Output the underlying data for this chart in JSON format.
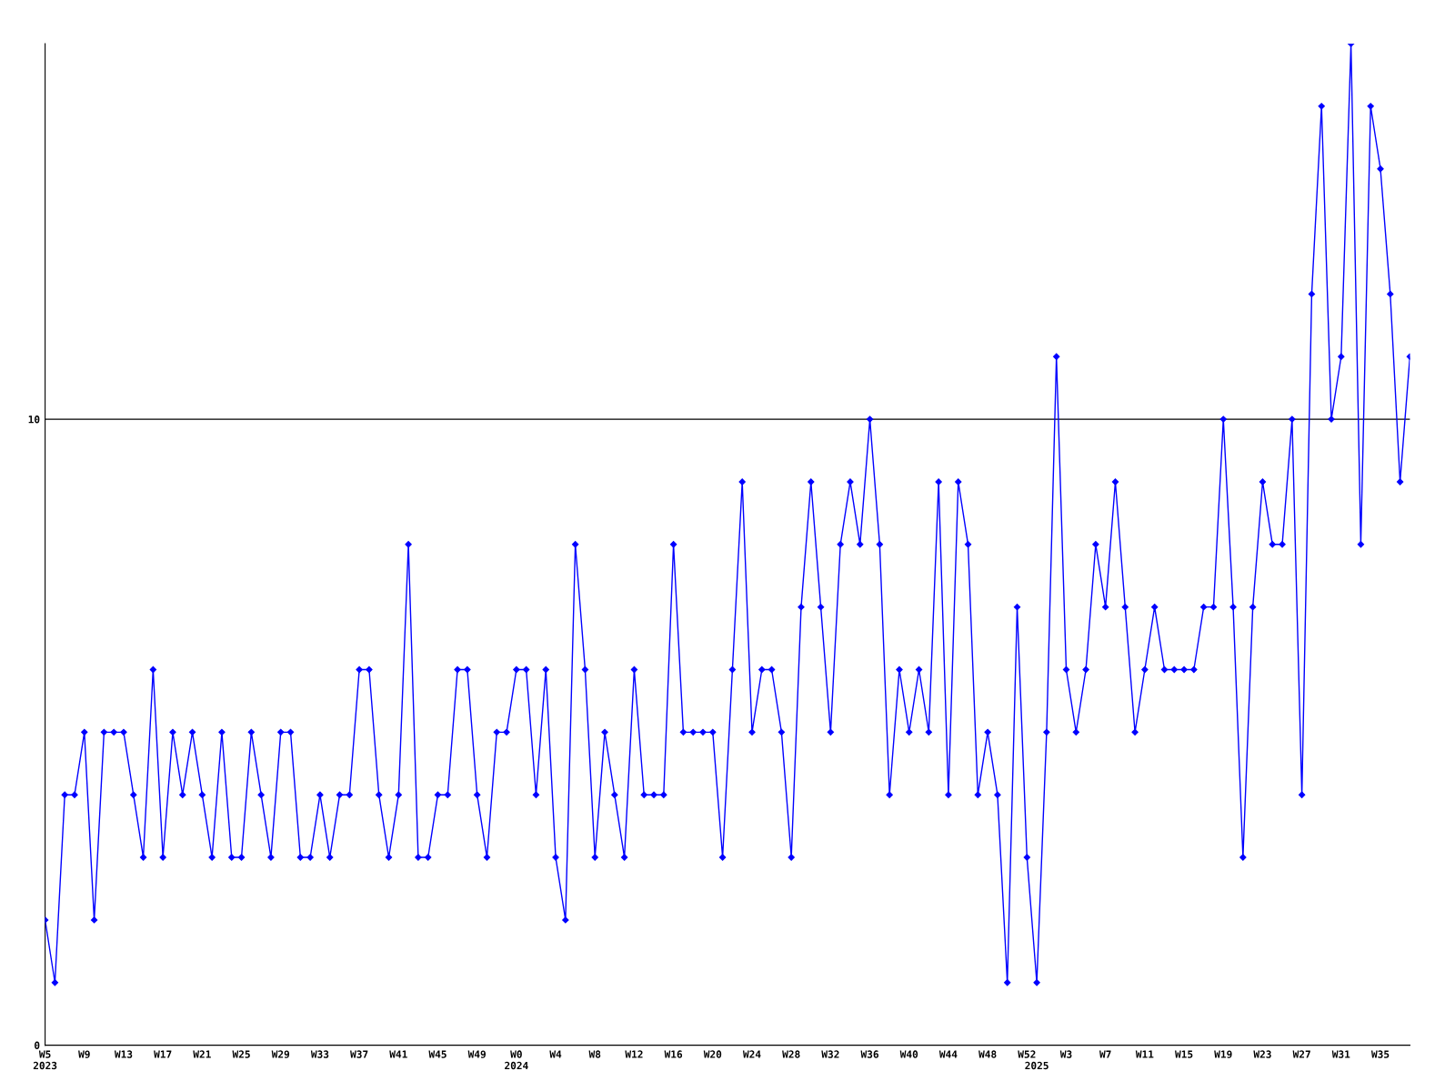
{
  "chart_data": {
    "type": "line",
    "categories": [
      "W5\n2023",
      null,
      null,
      null,
      "W9",
      null,
      null,
      null,
      "W13",
      null,
      null,
      null,
      "W17",
      null,
      null,
      null,
      "W21",
      null,
      null,
      null,
      "W25",
      null,
      null,
      null,
      "W29",
      null,
      null,
      null,
      "W33",
      null,
      null,
      null,
      "W37",
      null,
      null,
      null,
      "W41",
      null,
      null,
      null,
      "W45",
      null,
      null,
      null,
      "W49",
      null,
      null,
      null,
      "W0\n2024",
      null,
      null,
      null,
      "W4",
      null,
      null,
      null,
      "W8",
      null,
      null,
      null,
      "W12",
      null,
      null,
      null,
      "W16",
      null,
      null,
      null,
      "W20",
      null,
      null,
      null,
      "W24",
      null,
      null,
      null,
      "W28",
      null,
      null,
      null,
      "W32",
      null,
      null,
      null,
      "W36",
      null,
      null,
      null,
      "W40",
      null,
      null,
      null,
      "W44",
      null,
      null,
      null,
      "W48",
      null,
      null,
      null,
      "W52",
      "\n2025",
      null,
      null,
      "W3",
      null,
      null,
      null,
      "W7",
      null,
      null,
      null,
      "W11",
      null,
      null,
      null,
      "W15",
      null,
      null,
      null,
      "W19",
      null,
      null,
      null,
      "W23",
      null,
      null,
      null,
      "W27",
      null,
      null,
      null,
      "W31",
      null,
      null,
      null,
      "W35",
      null,
      null,
      null
    ],
    "series": [
      {
        "color": "#0000ff",
        "values": [
          2,
          1,
          4,
          4,
          5,
          2,
          5,
          5,
          5,
          4,
          3,
          6,
          3,
          5,
          4,
          5,
          4,
          3,
          5,
          3,
          3,
          5,
          4,
          3,
          5,
          5,
          3,
          3,
          4,
          3,
          4,
          4,
          6,
          6,
          4,
          3,
          4,
          8,
          3,
          3,
          4,
          4,
          6,
          6,
          4,
          3,
          5,
          5,
          6,
          6,
          4,
          6,
          3,
          2,
          8,
          6,
          3,
          5,
          4,
          3,
          6,
          4,
          4,
          4,
          8,
          5,
          5,
          5,
          5,
          3,
          6,
          9,
          5,
          6,
          6,
          5,
          3,
          7,
          9,
          7,
          5,
          8,
          9,
          8,
          10,
          8,
          4,
          6,
          5,
          6,
          5,
          9,
          4,
          9,
          8,
          4,
          5,
          4,
          1,
          7,
          3,
          1,
          5,
          11,
          6,
          5,
          6,
          8,
          7,
          9,
          7,
          5,
          6,
          7,
          6,
          6,
          6,
          6,
          7,
          7,
          10,
          7,
          3,
          7,
          9,
          8,
          8,
          10,
          4,
          12,
          15,
          10,
          11,
          16,
          8,
          15,
          14,
          12,
          9,
          11
        ]
      }
    ],
    "ylim": [
      0,
      16
    ],
    "yticks": [
      0,
      10
    ],
    "grid": "y",
    "marker": "diamond",
    "line_style": "solid"
  }
}
